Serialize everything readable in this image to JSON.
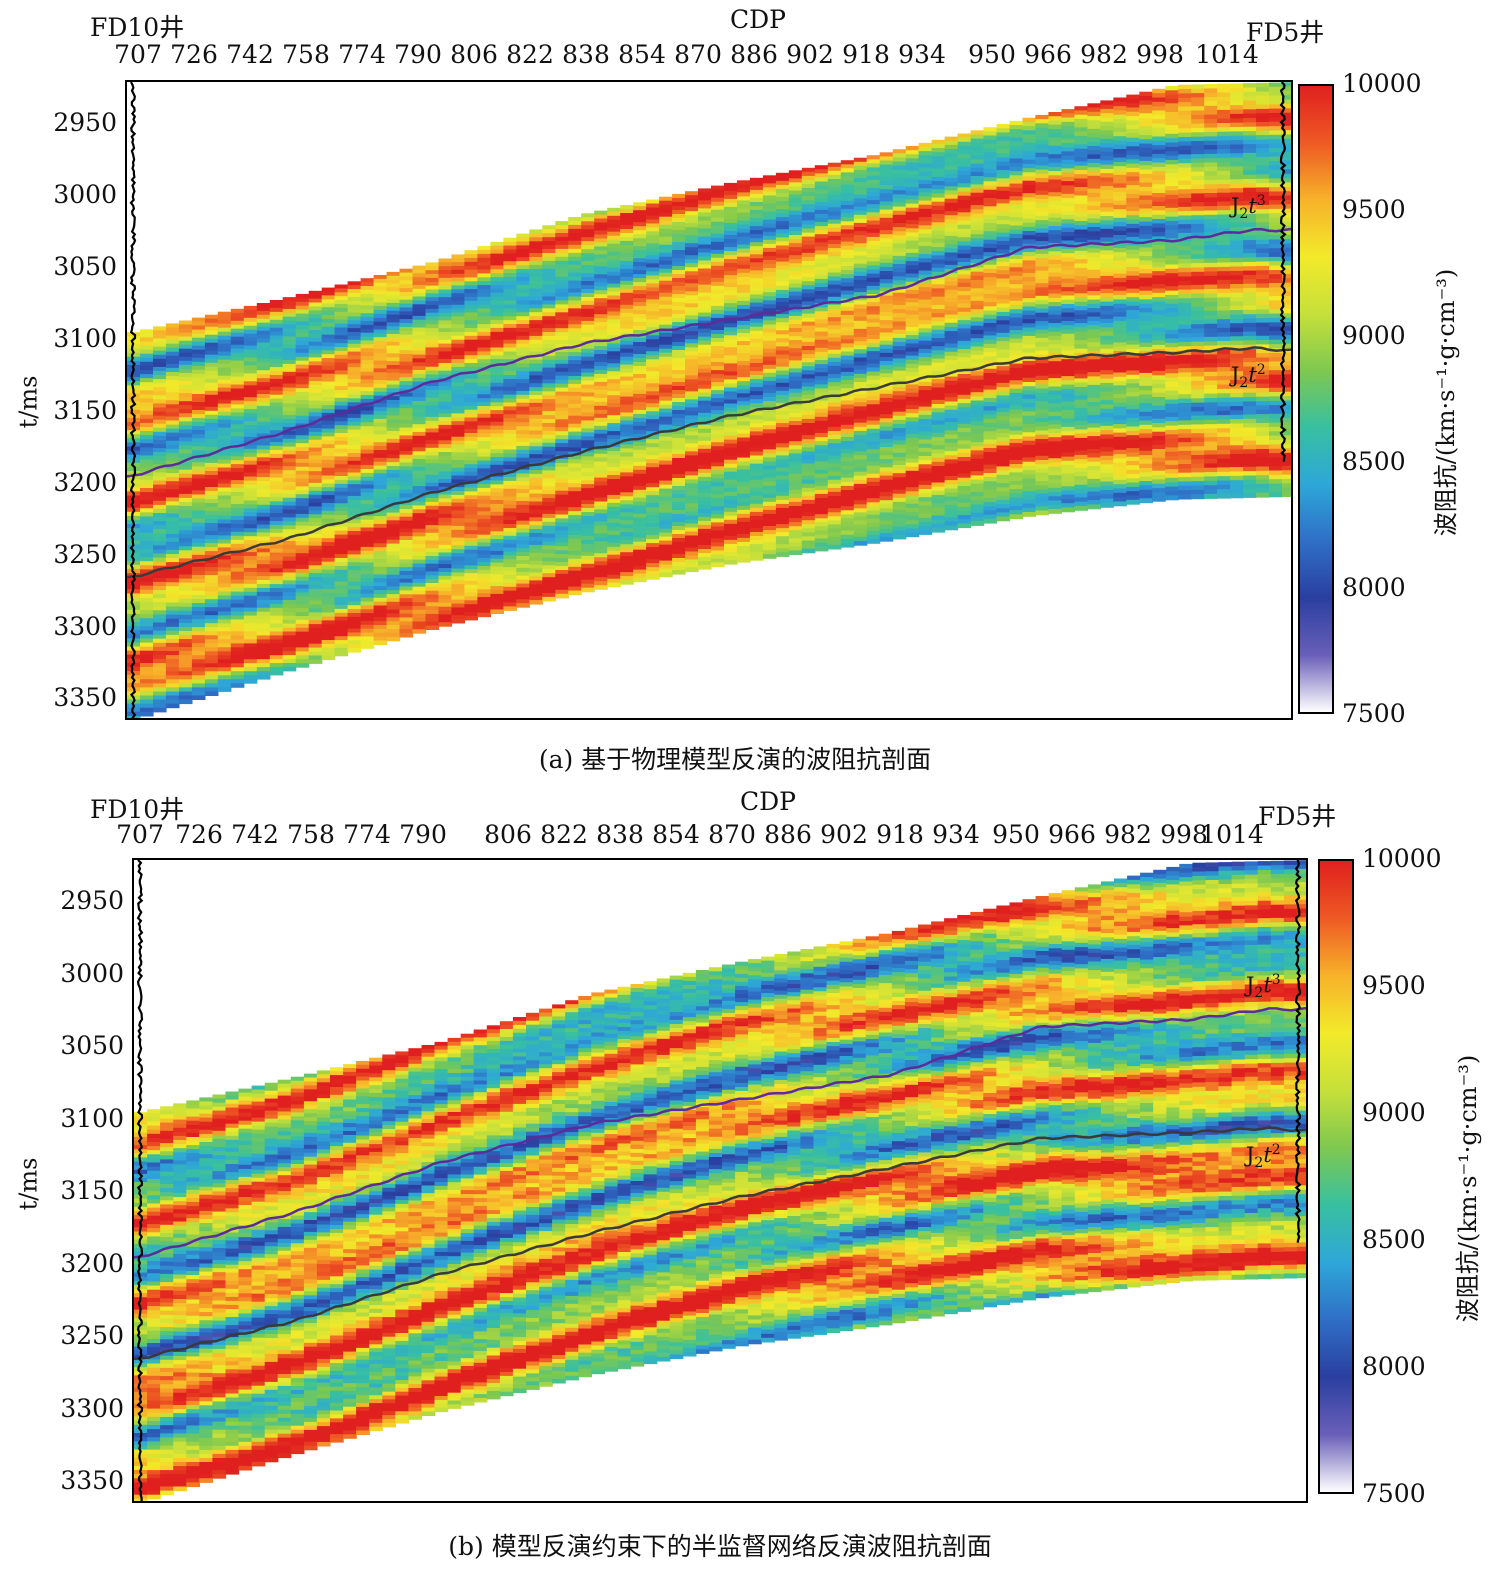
{
  "colors": {
    "colorbar": [
      "#ffffff",
      "#6a5fb8",
      "#2a3fa0",
      "#2f6fc6",
      "#2ea7d8",
      "#38c0a0",
      "#7ec850",
      "#c6e03a",
      "#f2ea2a",
      "#f7b22a",
      "#ee5a24",
      "#e0201f"
    ],
    "horizon_j2t3": "#5b2d9a",
    "horizon_j2t2": "#3a3a3a",
    "well_log": "#000000"
  },
  "chart_data": [
    {
      "type": "heatmap",
      "caption": "(a) 基于物理模型反演的波阻抗剖面",
      "xlabel": "CDP",
      "ylabel": "t/ms",
      "x_ticks": [
        "707",
        "726",
        "742",
        "758",
        "774",
        "790",
        "806",
        "822",
        "838",
        "854",
        "870",
        "886",
        "902",
        "918",
        "934",
        "950",
        "966",
        "982",
        "998",
        "1014"
      ],
      "y_ticks": [
        "2950",
        "3000",
        "3050",
        "3100",
        "3150",
        "3200",
        "3250",
        "3300",
        "3350"
      ],
      "xlim": [
        707,
        1022
      ],
      "ylim": [
        2920,
        3365
      ],
      "wells": [
        {
          "name": "FD10井",
          "cdp": 707
        },
        {
          "name": "FD5井",
          "cdp": 1022
        }
      ],
      "colorbar": {
        "label": "波阻抗/(km·s⁻¹·g·cm⁻³)",
        "ticks": [
          "10000",
          "9500",
          "9000",
          "8500",
          "8000",
          "7500"
        ],
        "range": [
          7500,
          10000
        ]
      },
      "horizons": [
        {
          "name": "J2t3",
          "cdp": [
            707,
            750,
            790,
            830,
            870,
            910,
            950,
            990,
            1010,
            1022
          ],
          "t": [
            3195,
            3163,
            3128,
            3102,
            3085,
            3068,
            3035,
            3030,
            3023,
            3023
          ]
        },
        {
          "name": "J2t2",
          "cdp": [
            707,
            750,
            790,
            830,
            870,
            910,
            950,
            990,
            1010,
            1022
          ],
          "t": [
            3265,
            3238,
            3205,
            3177,
            3152,
            3132,
            3112,
            3108,
            3105,
            3107
          ]
        }
      ],
      "section_extent": {
        "cdp": [
          707,
          750,
          790,
          830,
          870,
          910,
          950,
          990,
          1022
        ],
        "top": [
          3095,
          3070,
          3045,
          3012,
          2990,
          2970,
          2945,
          2922,
          2920
        ],
        "bottom": [
          3365,
          3330,
          3300,
          3275,
          3255,
          3240,
          3222,
          3210,
          3208
        ]
      }
    },
    {
      "type": "heatmap",
      "caption": "(b) 模型反演约束下的半监督网络反演波阻抗剖面",
      "xlabel": "CDP",
      "ylabel": "t/ms",
      "x_ticks": [
        "707",
        "726",
        "742",
        "758",
        "774",
        "790",
        "806",
        "822",
        "838",
        "854",
        "870",
        "886",
        "902",
        "918",
        "934",
        "950",
        "966",
        "982",
        "998",
        "1014"
      ],
      "y_ticks": [
        "2950",
        "3000",
        "3050",
        "3100",
        "3150",
        "3200",
        "3250",
        "3300",
        "3350"
      ],
      "xlim": [
        707,
        1022
      ],
      "ylim": [
        2920,
        3365
      ],
      "wells": [
        {
          "name": "FD10井",
          "cdp": 707
        },
        {
          "name": "FD5井",
          "cdp": 1022
        }
      ],
      "colorbar": {
        "label": "波阻抗/(km·s⁻¹·g·cm⁻³)",
        "ticks": [
          "10000",
          "9500",
          "9000",
          "8500",
          "8000",
          "7500"
        ],
        "range": [
          7500,
          10000
        ]
      },
      "horizons": [
        {
          "name": "J2t3",
          "cdp": [
            707,
            750,
            790,
            830,
            870,
            910,
            950,
            990,
            1010,
            1022
          ],
          "t": [
            3195,
            3163,
            3128,
            3102,
            3085,
            3068,
            3035,
            3030,
            3023,
            3023
          ]
        },
        {
          "name": "J2t2",
          "cdp": [
            707,
            750,
            790,
            830,
            870,
            910,
            950,
            990,
            1010,
            1022
          ],
          "t": [
            3265,
            3238,
            3205,
            3177,
            3152,
            3132,
            3112,
            3108,
            3105,
            3107
          ]
        }
      ],
      "section_extent": {
        "cdp": [
          707,
          750,
          790,
          830,
          870,
          910,
          950,
          990,
          1022
        ],
        "top": [
          3095,
          3070,
          3045,
          3012,
          2990,
          2970,
          2945,
          2922,
          2920
        ],
        "bottom": [
          3365,
          3330,
          3300,
          3275,
          3255,
          3240,
          3222,
          3210,
          3208
        ]
      }
    }
  ]
}
